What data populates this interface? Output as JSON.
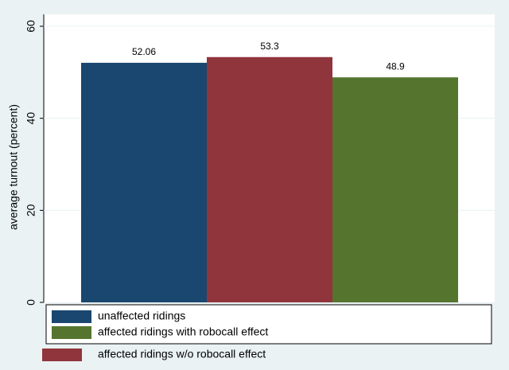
{
  "chart_data": {
    "type": "bar",
    "ylabel": "average turnout (percent)",
    "series": [
      {
        "name": "unaffected ridings",
        "color": "#1a476f",
        "values": [
          52.06
        ]
      },
      {
        "name": "affected ridings w/o robocall effect",
        "color": "#90353b",
        "values": [
          53.3
        ]
      },
      {
        "name": "affected ridings with robocall effect",
        "color": "#55752f",
        "values": [
          48.9
        ]
      }
    ],
    "ylim": [
      0,
      60
    ],
    "yticks": [
      0,
      20,
      40,
      60
    ],
    "grid": true
  }
}
